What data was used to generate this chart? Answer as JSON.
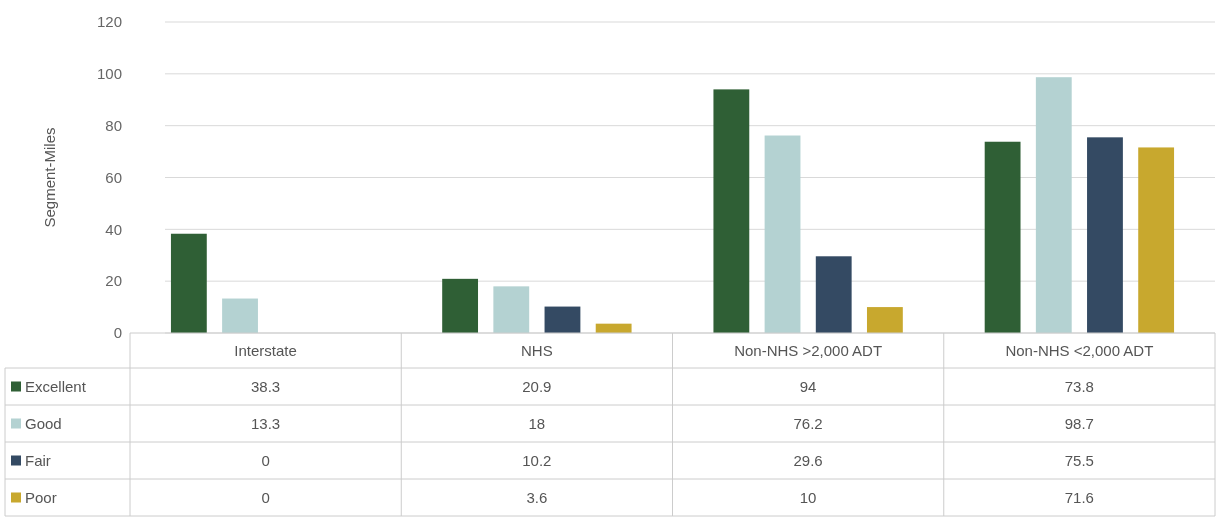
{
  "chart_data": {
    "type": "bar",
    "ylabel": "Segment-Miles",
    "categories": [
      "Interstate",
      "NHS",
      "Non-NHS >2,000 ADT",
      "Non-NHS <2,000 ADT"
    ],
    "series": [
      {
        "name": "Excellent",
        "color": "#2f5f35",
        "values": [
          38.3,
          20.9,
          94,
          73.8
        ]
      },
      {
        "name": "Good",
        "color": "#b4d2d2",
        "values": [
          13.3,
          18,
          76.2,
          98.7
        ]
      },
      {
        "name": "Fair",
        "color": "#344a63",
        "values": [
          0,
          10.2,
          29.6,
          75.5
        ]
      },
      {
        "name": "Poor",
        "color": "#c8a82e",
        "values": [
          0,
          3.6,
          10,
          71.6
        ]
      }
    ],
    "ylim": [
      0,
      120
    ],
    "yticks": [
      0,
      20,
      40,
      60,
      80,
      100,
      120
    ],
    "grid": "y",
    "data_labels": true,
    "legend": "bottom left"
  }
}
